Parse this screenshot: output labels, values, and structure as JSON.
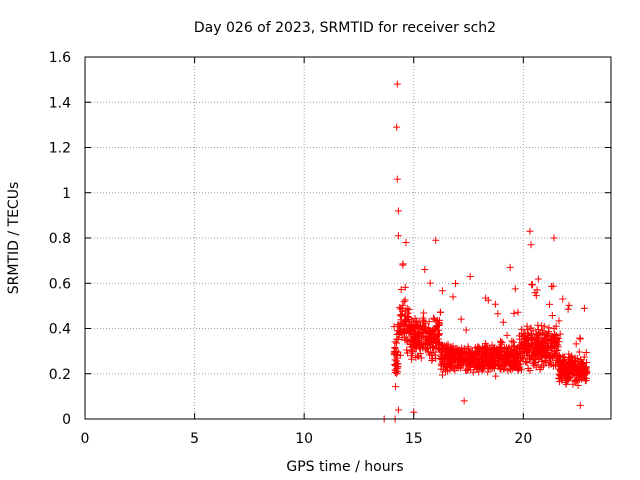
{
  "chart_data": {
    "type": "scatter",
    "title": "Day 026 of 2023, SRMTID for receiver sch2",
    "xlabel": "GPS time / hours",
    "ylabel": "SRMTID / TECUs",
    "xlim": [
      0,
      24
    ],
    "ylim": [
      0,
      1.6
    ],
    "xticks": [
      0,
      5,
      10,
      15,
      20
    ],
    "xtick_labels": [
      "0",
      "5",
      "10",
      "15",
      "20"
    ],
    "yticks": [
      0,
      0.2,
      0.4,
      0.6,
      0.8,
      1.0,
      1.2,
      1.4,
      1.6
    ],
    "ytick_labels": [
      "0",
      "0.2",
      "0.4",
      "0.6",
      "0.8",
      "1",
      "1.2",
      "1.4",
      "1.6"
    ],
    "grid": true,
    "marker": "+",
    "marker_color": "#ff0000",
    "axis_color": "#000000",
    "grid_color": "#a0a0a0",
    "series": [
      {
        "name": "SRMTID",
        "description": "dense cloud of ~1500 samples from 13.6 h to 22.9 h; visible outliers listed as key points",
        "key_points": [
          {
            "x": 13.65,
            "y": 0.0
          },
          {
            "x": 14.15,
            "y": 0.0
          },
          {
            "x": 14.25,
            "y": 1.48
          },
          {
            "x": 14.22,
            "y": 1.29
          },
          {
            "x": 14.25,
            "y": 1.06
          },
          {
            "x": 14.3,
            "y": 0.92
          },
          {
            "x": 14.3,
            "y": 0.81
          },
          {
            "x": 14.5,
            "y": 0.68
          },
          {
            "x": 16.0,
            "y": 0.79
          },
          {
            "x": 19.4,
            "y": 0.67
          },
          {
            "x": 20.3,
            "y": 0.83
          },
          {
            "x": 20.35,
            "y": 0.77
          },
          {
            "x": 21.4,
            "y": 0.8
          },
          {
            "x": 22.6,
            "y": 0.06
          },
          {
            "x": 14.3,
            "y": 0.04
          },
          {
            "x": 15.0,
            "y": 0.03
          },
          {
            "x": 17.3,
            "y": 0.08
          }
        ]
      }
    ]
  }
}
